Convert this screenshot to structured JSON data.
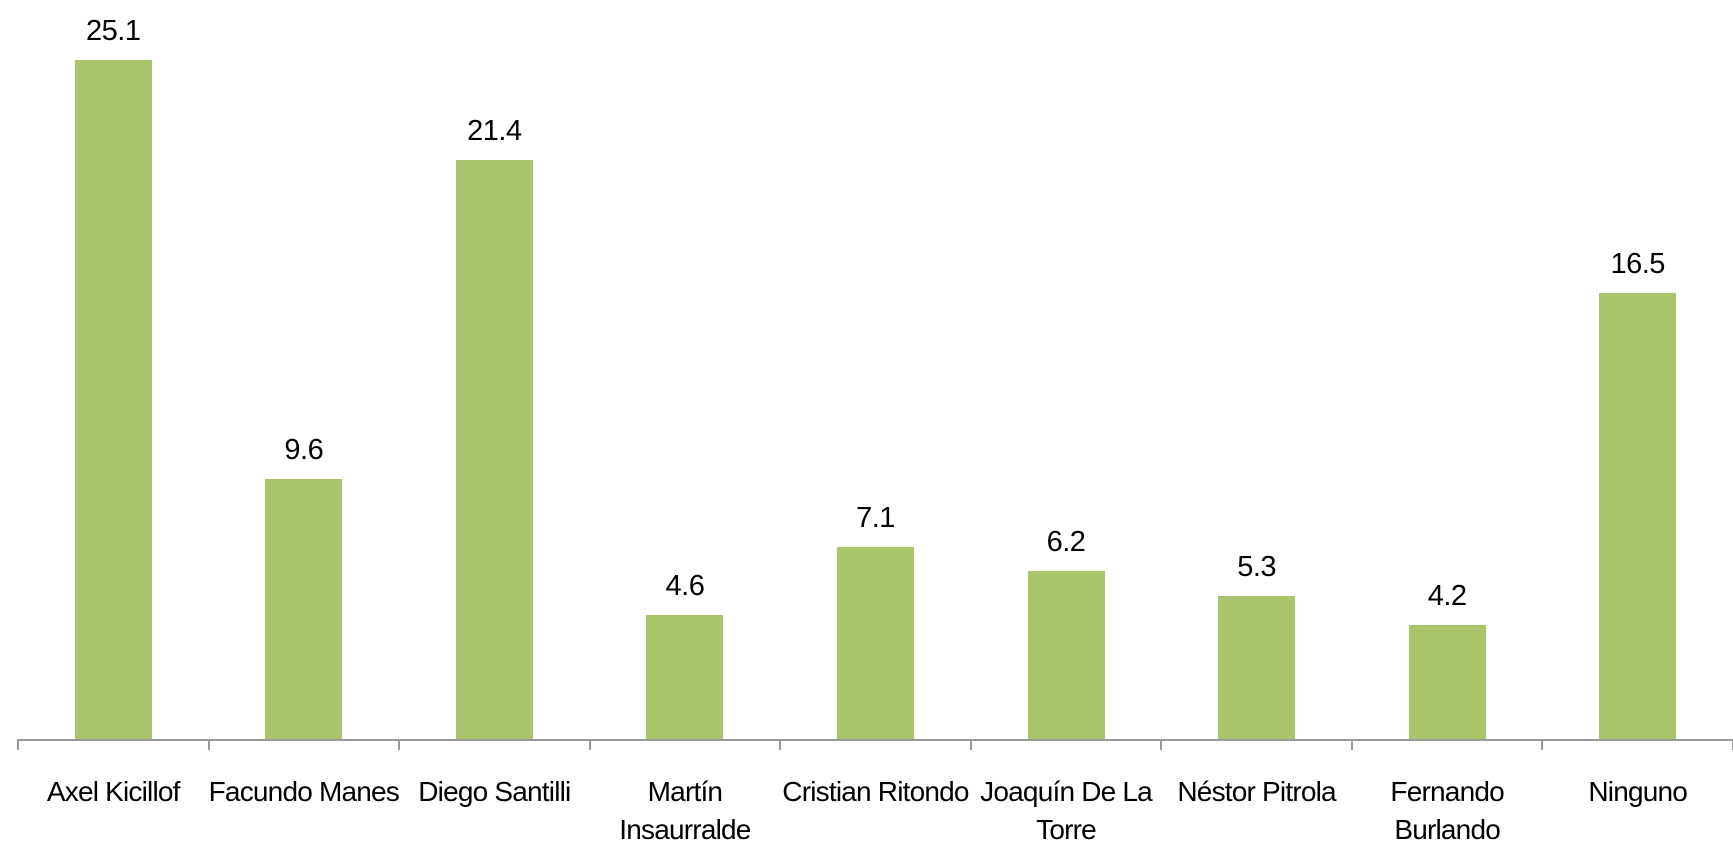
{
  "chart_data": {
    "type": "bar",
    "categories": [
      "Axel Kicillof",
      "Facundo Manes",
      "Diego Santilli",
      "Martín Insaurralde",
      "Cristian Ritondo",
      "Joaquín De La Torre",
      "Néstor Pitrola",
      "Fernando Burlando",
      "Ninguno"
    ],
    "values": [
      25.1,
      9.6,
      21.4,
      4.6,
      7.1,
      6.2,
      5.3,
      4.2,
      16.5
    ],
    "color": "#aac46c"
  }
}
